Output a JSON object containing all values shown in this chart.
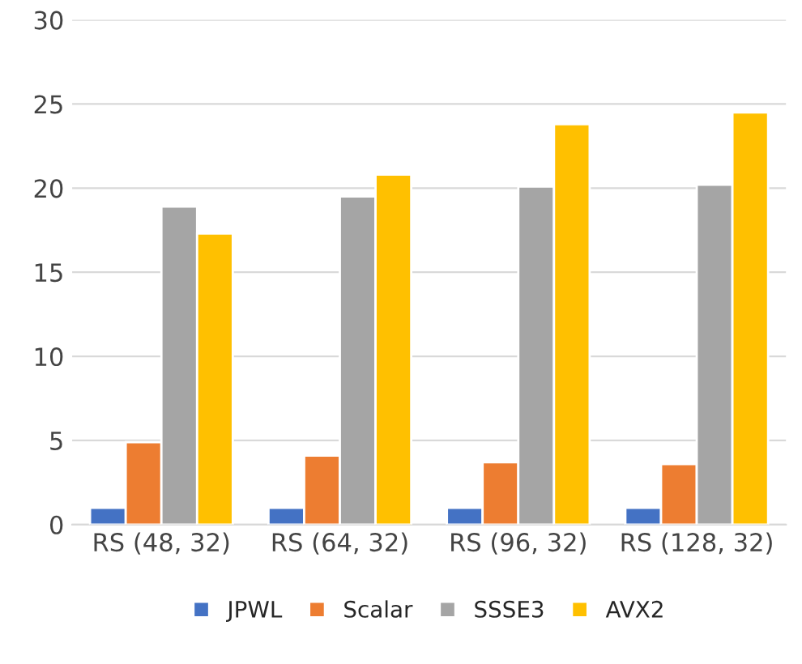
{
  "chart_data": {
    "type": "bar",
    "categories": [
      "RS (48, 32)",
      "RS (64, 32)",
      "RS (96, 32)",
      "RS (128, 32)"
    ],
    "series": [
      {
        "name": "JPWL",
        "color": "#4472c4",
        "values": [
          1,
          1,
          1,
          1
        ]
      },
      {
        "name": "Scalar",
        "color": "#ed7d31",
        "values": [
          4.9,
          4.1,
          3.7,
          3.6
        ]
      },
      {
        "name": "SSSE3",
        "color": "#a5a5a5",
        "values": [
          18.9,
          19.5,
          20.1,
          20.2
        ]
      },
      {
        "name": "AVX2",
        "color": "#ffc000",
        "values": [
          17.3,
          20.8,
          23.8,
          24.5
        ]
      }
    ],
    "ylim": [
      0,
      30
    ],
    "yticks": [
      0,
      5,
      10,
      15,
      20,
      25,
      30
    ],
    "grid": "y",
    "legend": "bottom"
  }
}
